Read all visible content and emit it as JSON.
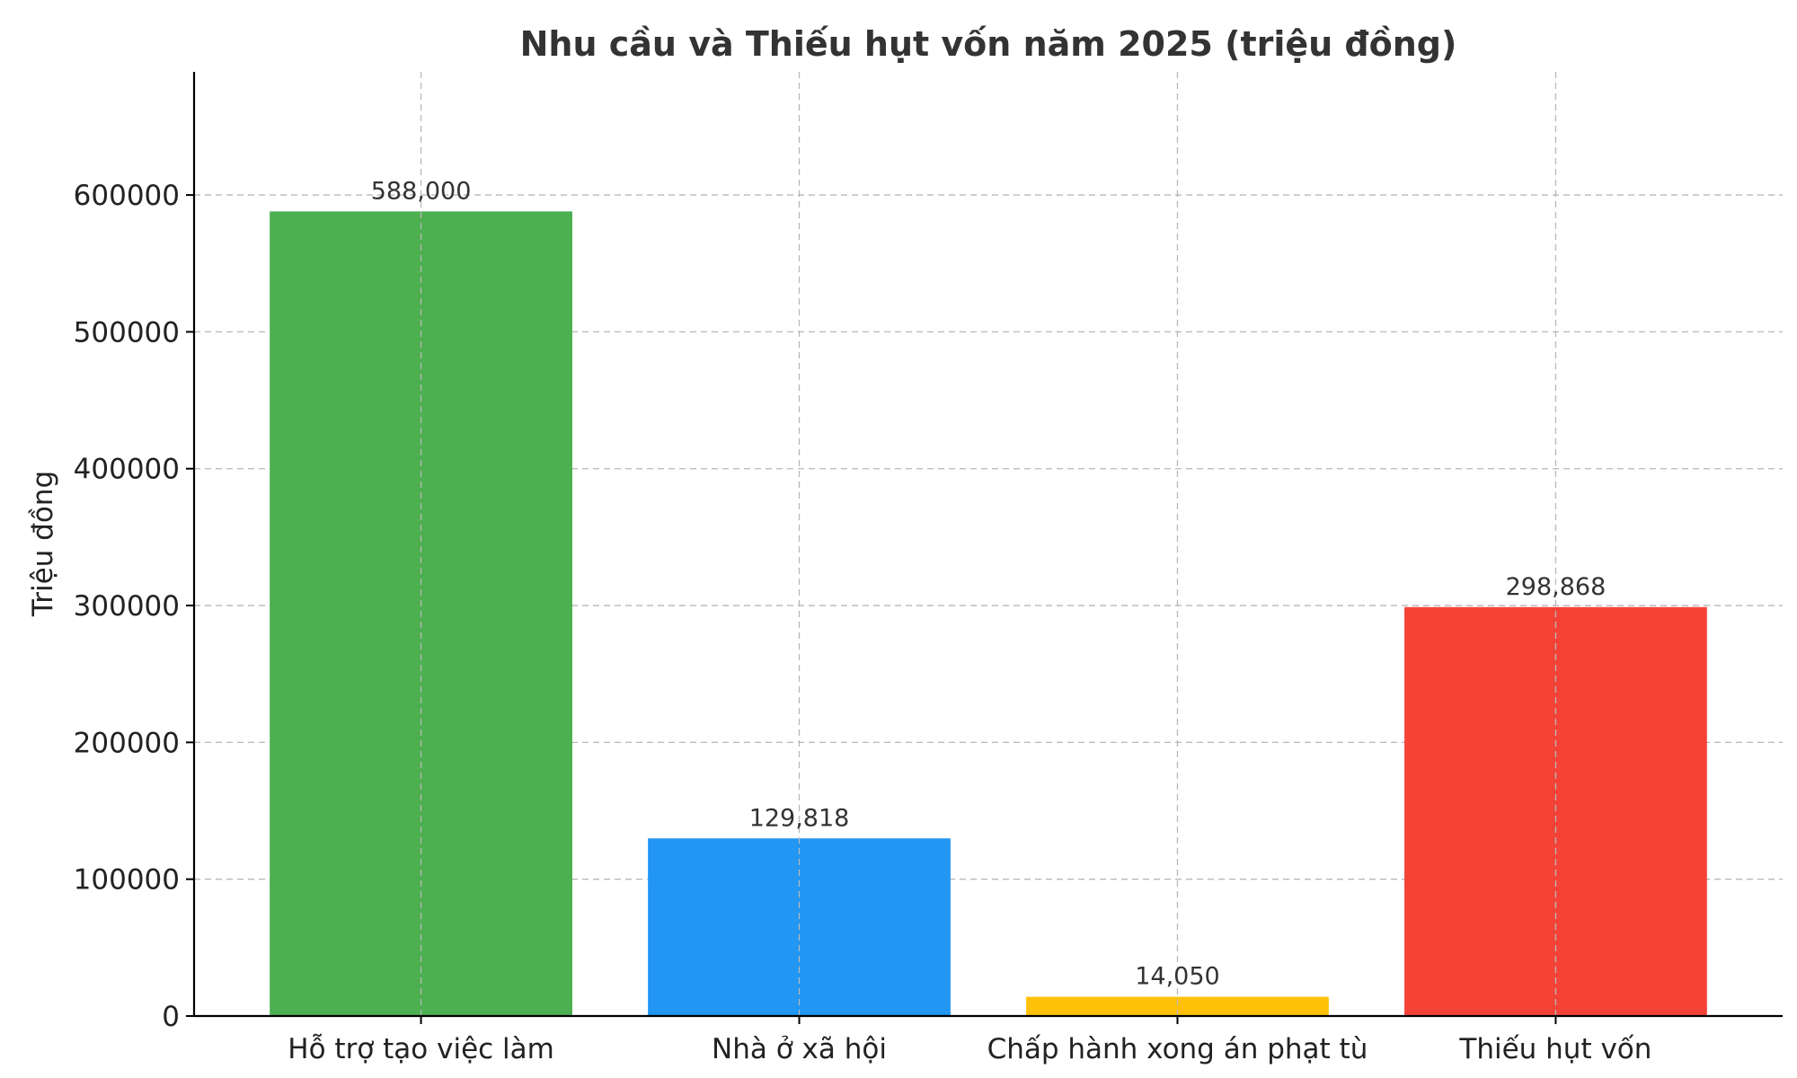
{
  "chart_data": {
    "type": "bar",
    "title": "Nhu cầu và Thiếu hụt vốn năm 2025 (triệu đồng)",
    "xlabel": "",
    "ylabel": "Triệu đồng",
    "categories": [
      "Hỗ trợ tạo việc làm",
      "Nhà ở xã hội",
      "Chấp hành xong án phạt tù",
      "Thiếu hụt vốn"
    ],
    "values": [
      588000,
      129818,
      14050,
      298868
    ],
    "value_labels": [
      "588,000",
      "129,818",
      "14,050",
      "298,868"
    ],
    "colors": [
      "#4caf50",
      "#2196f3",
      "#ffc107",
      "#f44336"
    ],
    "ylim": [
      0,
      690000
    ],
    "yticks": [
      0,
      100000,
      200000,
      300000,
      400000,
      500000,
      600000
    ],
    "ytick_labels": [
      "0",
      "100000",
      "200000",
      "300000",
      "400000",
      "500000",
      "600000"
    ],
    "grid": true
  }
}
